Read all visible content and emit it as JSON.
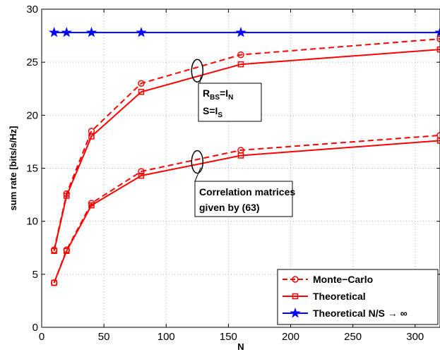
{
  "chart_data": {
    "type": "line",
    "title": "",
    "xlabel": "N",
    "ylabel": "sum rate [bits/s/Hz]",
    "xlim": [
      0,
      320
    ],
    "ylim": [
      0,
      30
    ],
    "xticks": [
      0,
      50,
      100,
      150,
      200,
      250,
      300
    ],
    "yticks": [
      0,
      5,
      10,
      15,
      20,
      25,
      30
    ],
    "grid": true,
    "legend_position": "bottom-right",
    "colors": {
      "red": "#ff0000",
      "blue": "#0000ff"
    },
    "series": [
      {
        "name": "Monte−Carlo",
        "group": "identity",
        "style": "dashed",
        "marker": "circle",
        "color": "#ff0000",
        "x": [
          10,
          20,
          40,
          80,
          160,
          320
        ],
        "y": [
          7.3,
          12.6,
          18.5,
          23.0,
          25.7,
          27.2
        ]
      },
      {
        "name": "Theoretical",
        "group": "identity",
        "style": "solid",
        "marker": "square",
        "color": "#ff0000",
        "x": [
          10,
          20,
          40,
          80,
          160,
          320
        ],
        "y": [
          7.2,
          12.4,
          18.0,
          22.2,
          24.8,
          26.2
        ]
      },
      {
        "name": "Monte−Carlo",
        "group": "correlated",
        "style": "dashed",
        "marker": "circle",
        "color": "#ff0000",
        "x": [
          10,
          20,
          40,
          80,
          160,
          320
        ],
        "y": [
          4.2,
          7.3,
          11.7,
          14.7,
          16.7,
          18.1
        ]
      },
      {
        "name": "Theoretical",
        "group": "correlated",
        "style": "solid",
        "marker": "square",
        "color": "#ff0000",
        "x": [
          10,
          20,
          40,
          80,
          160,
          320
        ],
        "y": [
          4.2,
          7.2,
          11.5,
          14.3,
          16.2,
          17.6
        ]
      },
      {
        "name": "Theoretical N/S → ∞",
        "group": "limit",
        "style": "solid",
        "marker": "star",
        "color": "#0000ff",
        "x": [
          10,
          20,
          40,
          80,
          160,
          320
        ],
        "y": [
          27.8,
          27.8,
          27.8,
          27.8,
          27.8,
          27.8
        ]
      }
    ],
    "legend": [
      {
        "label": "Monte−Carlo",
        "style": "dashed",
        "marker": "circle",
        "color": "#ff0000"
      },
      {
        "label": "Theoretical",
        "style": "solid",
        "marker": "square",
        "color": "#ff0000"
      },
      {
        "label": "Theoretical N/S → ∞",
        "style": "solid",
        "marker": "star",
        "color": "#0000ff"
      }
    ],
    "annotations": [
      {
        "id": "identity",
        "lines": [
          {
            "parts": [
              {
                "text": "R"
              },
              {
                "text": "BS",
                "sub": true
              },
              {
                "text": "=I"
              },
              {
                "text": "N",
                "sub": true
              }
            ]
          },
          {
            "parts": [
              {
                "text": "S=I"
              },
              {
                "text": "S",
                "sub": true
              }
            ]
          }
        ],
        "ellipse_at": {
          "x": 125,
          "y": 24.2
        }
      },
      {
        "id": "correlated",
        "lines": [
          {
            "parts": [
              {
                "text": "Correlation matrices"
              }
            ]
          },
          {
            "parts": [
              {
                "text": "given by (63)"
              }
            ]
          }
        ],
        "ellipse_at": {
          "x": 125,
          "y": 15.6
        }
      }
    ]
  }
}
